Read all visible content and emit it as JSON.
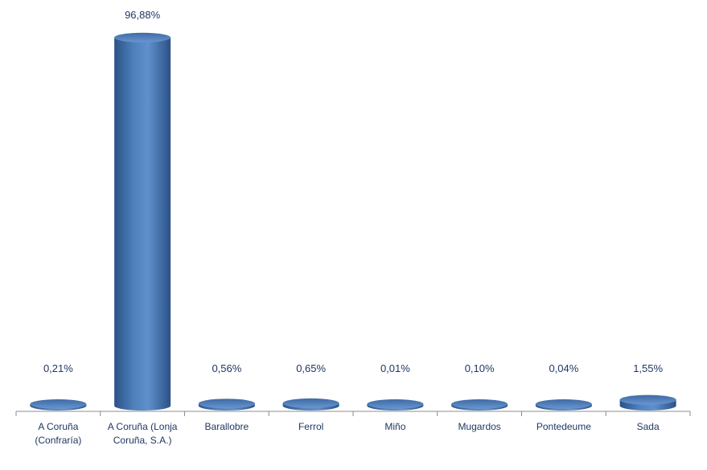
{
  "chart_data": {
    "type": "bar",
    "style": "3d-cylinder",
    "title": "",
    "xlabel": "",
    "ylabel": "",
    "ylim": [
      0,
      100
    ],
    "grid": false,
    "legend": "none",
    "categories": [
      [
        "A Coruña",
        "(Confraría)"
      ],
      [
        "A Coruña (Lonja",
        "Coruña, S.A.)"
      ],
      [
        "Barallobre"
      ],
      [
        "Ferrol"
      ],
      [
        "Miño"
      ],
      [
        "Mugardos"
      ],
      [
        "Pontedeume"
      ],
      [
        "Sada"
      ]
    ],
    "values": [
      0.21,
      96.88,
      0.56,
      0.65,
      0.01,
      0.1,
      0.04,
      1.55
    ],
    "data_labels": [
      "0,21%",
      "96,88%",
      "0,56%",
      "0,65%",
      "0,01%",
      "0,10%",
      "0,04%",
      "1,55%"
    ],
    "colors": {
      "bar": "#4f81bd",
      "bar_dark": "#2b5287",
      "bar_top": "#6a96cf",
      "label": "#1f3864",
      "axis": "#8c8c8c"
    }
  }
}
